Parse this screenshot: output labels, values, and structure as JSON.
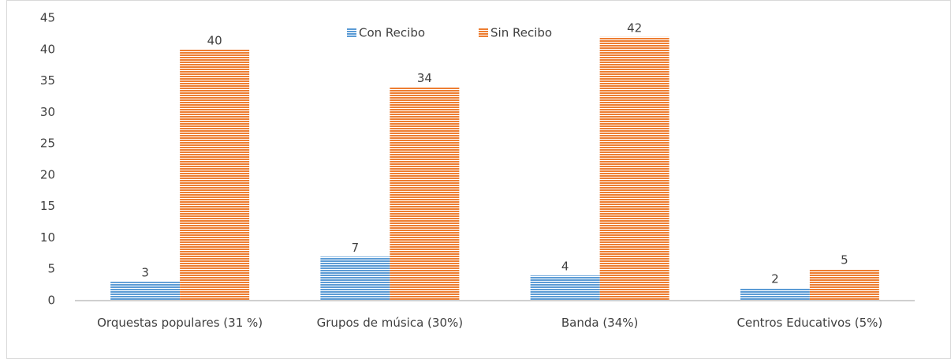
{
  "chart_data": {
    "type": "bar",
    "categories": [
      "Orquestas populares (31 %)",
      "Grupos de música (30%)",
      "Banda (34%)",
      "Centros Educativos (5%)"
    ],
    "series": [
      {
        "name": "Con Recibo",
        "color": "#5b9bd5",
        "values": [
          3,
          7,
          4,
          2
        ]
      },
      {
        "name": "Sin Recibo",
        "color": "#ed7d31",
        "values": [
          40,
          34,
          42,
          5
        ]
      }
    ],
    "ylim": [
      0,
      45
    ],
    "yticks": [
      0,
      5,
      10,
      15,
      20,
      25,
      30,
      35,
      40,
      45
    ],
    "grid": false,
    "legend": "top"
  }
}
